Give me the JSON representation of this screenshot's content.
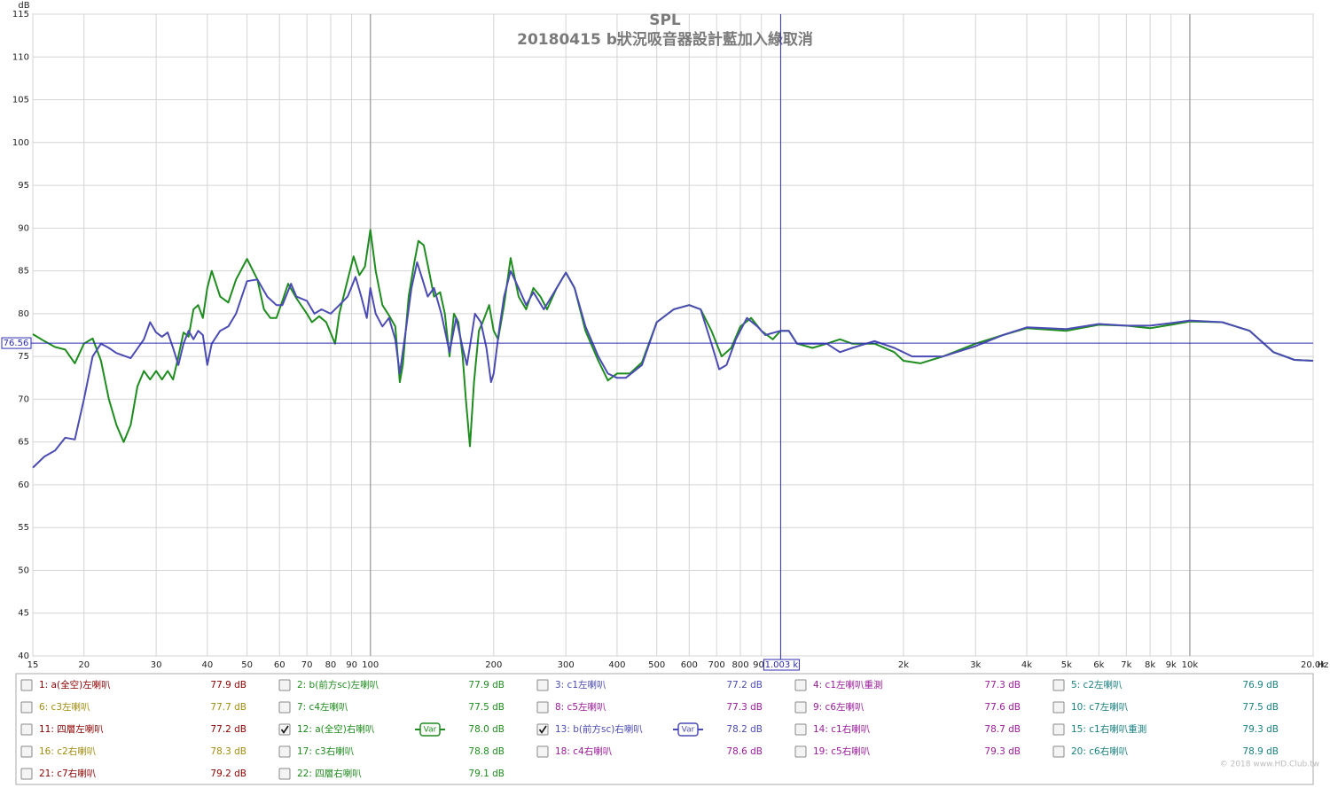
{
  "chart_data": {
    "type": "line",
    "title": "SPL",
    "subtitle": "20180415  b狀況吸音器設計藍加入綠取消",
    "y_label": "dB",
    "x_unit": "Hz",
    "log_x": true,
    "grid": true,
    "xlim": [
      15,
      20000
    ],
    "ylim": [
      40,
      115
    ],
    "yticks": [
      40,
      45,
      50,
      55,
      60,
      65,
      70,
      75,
      80,
      85,
      90,
      95,
      100,
      105,
      110,
      115
    ],
    "xticks": [
      15,
      20,
      30,
      40,
      50,
      60,
      70,
      80,
      90,
      100,
      200,
      300,
      400,
      500,
      600,
      700,
      800,
      900,
      {
        "value": 2000,
        "label": "2k"
      },
      {
        "value": 3000,
        "label": "3k"
      },
      {
        "value": 4000,
        "label": "4k"
      },
      {
        "value": 5000,
        "label": "5k"
      },
      {
        "value": 6000,
        "label": "6k"
      },
      {
        "value": 7000,
        "label": "7k"
      },
      {
        "value": 8000,
        "label": "8k"
      },
      {
        "value": 9000,
        "label": "9k"
      },
      {
        "value": 10000,
        "label": "10k"
      },
      {
        "value": 20000,
        "label": "20.0k"
      }
    ],
    "cursor": {
      "x": 1003,
      "x_label": "1.003 k",
      "y": 76.56
    },
    "watermark": "© 2018 www.HD.Club.tw",
    "series": [
      {
        "name": "1: a(全空)左喇叭",
        "color": "#8b0000",
        "level": 77.9,
        "level_label": "77.9 dB",
        "checked": false
      },
      {
        "name": "2: b(前方sc)左喇叭",
        "color": "#1e8c1e",
        "level": 77.9,
        "level_label": "77.9 dB",
        "checked": false
      },
      {
        "name": "3: c1左喇叭",
        "color": "#4b4bb4",
        "level": 77.2,
        "level_label": "77.2 dB",
        "checked": false
      },
      {
        "name": "4: c1左喇叭重測",
        "color": "#9b1b9b",
        "level": 77.3,
        "level_label": "77.3 dB",
        "checked": false
      },
      {
        "name": "5: c2左喇叭",
        "color": "#1b8080",
        "level": 76.9,
        "level_label": "76.9 dB",
        "checked": false
      },
      {
        "name": "6: c3左喇叭",
        "color": "#a08c10",
        "level": 77.7,
        "level_label": "77.7 dB",
        "checked": false
      },
      {
        "name": "7: c4左喇叭",
        "color": "#1e8c1e",
        "level": 77.5,
        "level_label": "77.5 dB",
        "checked": false
      },
      {
        "name": "8: c5左喇叭",
        "color": "#9b1b9b",
        "level": 77.3,
        "level_label": "77.3 dB",
        "checked": false
      },
      {
        "name": "9: c6左喇叭",
        "color": "#9b1b9b",
        "level": 77.6,
        "level_label": "77.6 dB",
        "checked": false
      },
      {
        "name": "10: c7左喇叭",
        "color": "#1b8080",
        "level": 77.5,
        "level_label": "77.5 dB",
        "checked": false
      },
      {
        "name": "11: 四層左喇叭",
        "color": "#8b0000",
        "level": 77.2,
        "level_label": "77.2 dB",
        "checked": false
      },
      {
        "name": "12: a(全空)右喇叭",
        "color": "#1e8c1e",
        "level": 78.0,
        "level_label": "78.0 dB",
        "checked": true,
        "var_label": "Var",
        "x": [
          15,
          16,
          17,
          18,
          19,
          20,
          21,
          22,
          23,
          24,
          25,
          26,
          27,
          28,
          29,
          30,
          31,
          32,
          33,
          34,
          35,
          36,
          37,
          38,
          39,
          40,
          41,
          43,
          45,
          47,
          50,
          53,
          55,
          57,
          59,
          61,
          63,
          66,
          70,
          72,
          75,
          78,
          82,
          84,
          87,
          91,
          94,
          97,
          100,
          103,
          107,
          111,
          115,
          118,
          120,
          124,
          128,
          131,
          135,
          139,
          143,
          148,
          152,
          156,
          160,
          164,
          168,
          171,
          175,
          179,
          184,
          188,
          195,
          200,
          205,
          212,
          220,
          230,
          240,
          250,
          260,
          270,
          285,
          300,
          315,
          335,
          360,
          380,
          400,
          430,
          460,
          500,
          550,
          600,
          640,
          680,
          720,
          760,
          800,
          850,
          900,
          960,
          1003,
          1050,
          1100,
          1200,
          1300,
          1400,
          1500,
          1700,
          1900,
          2000,
          2200,
          2500,
          3000,
          3500,
          4000,
          5000,
          6000,
          7000,
          8000,
          9000,
          10000,
          12000,
          14000,
          16000,
          18000,
          20000
        ],
        "values": [
          77.6,
          76.8,
          76.1,
          75.8,
          74.2,
          76.5,
          77.1,
          74.5,
          70,
          67,
          65,
          67,
          71.5,
          73.3,
          72.3,
          73.3,
          72.3,
          73.3,
          72.3,
          75,
          77.8,
          77.3,
          80.5,
          81,
          79.5,
          83,
          85,
          82,
          81.3,
          84,
          86.4,
          84,
          80.5,
          79.5,
          79.5,
          81.5,
          83.5,
          81.8,
          80,
          79,
          79.7,
          79,
          76.5,
          80,
          83,
          86.7,
          84.5,
          85.5,
          89.8,
          85,
          81,
          79.8,
          78.5,
          72,
          74,
          82,
          86,
          88.5,
          88,
          85,
          82,
          82.5,
          80,
          75,
          80,
          79,
          75,
          70,
          64.5,
          72,
          78,
          79,
          81,
          78,
          77,
          81,
          86.5,
          82,
          80.5,
          83,
          82,
          80.5,
          83,
          84.8,
          83,
          78,
          74.5,
          72.2,
          73,
          73,
          74.3,
          79,
          80.5,
          81,
          80.5,
          78,
          75,
          76,
          78.5,
          79.5,
          78,
          77,
          78,
          78,
          76.5,
          76,
          76.5,
          77,
          76.5,
          76.5,
          75.5,
          74.5,
          74.2,
          75,
          76.5,
          77.5,
          78.3,
          78,
          78.7,
          78.6,
          78.3,
          78.7,
          79.1,
          79,
          78,
          75.5,
          74.6,
          74.5
        ]
      },
      {
        "name": "13: b(前方sc)右喇叭",
        "color": "#4b4bb4",
        "level": 78.2,
        "level_label": "78.2 dB",
        "checked": true,
        "var_label": "Var",
        "x": [
          15,
          16,
          17,
          18,
          19,
          20,
          21,
          22,
          23,
          24,
          26,
          28,
          29,
          30,
          31,
          32,
          33,
          34,
          35,
          36,
          37,
          38,
          39,
          40,
          41,
          43,
          45,
          47,
          50,
          53,
          56,
          59,
          61,
          64,
          66,
          70,
          73,
          76,
          80,
          84,
          88,
          92,
          95,
          98,
          100,
          103,
          107,
          111,
          115,
          118,
          122,
          126,
          130,
          134,
          138,
          143,
          149,
          156,
          162,
          168,
          172,
          176,
          180,
          186,
          192,
          197,
          200,
          206,
          212,
          220,
          230,
          240,
          250,
          265,
          285,
          300,
          315,
          335,
          360,
          380,
          400,
          420,
          460,
          500,
          550,
          600,
          640,
          680,
          710,
          740,
          780,
          830,
          880,
          920,
          1003,
          1050,
          1100,
          1200,
          1300,
          1400,
          1500,
          1700,
          1900,
          2100,
          2500,
          3000,
          3500,
          4000,
          5000,
          6000,
          7000,
          8000,
          9000,
          10000,
          12000,
          14000,
          16000,
          18000,
          20000
        ],
        "values": [
          62,
          63.3,
          64,
          65.5,
          65.3,
          70,
          75,
          76.5,
          76,
          75.4,
          74.8,
          77,
          79,
          77.8,
          77.3,
          77.8,
          76,
          74,
          76.5,
          78,
          77,
          78,
          77.5,
          74,
          76.5,
          78,
          78.5,
          80,
          83.8,
          84,
          82,
          81,
          81,
          83.5,
          82,
          81.5,
          80,
          80.5,
          80,
          81,
          82,
          84.3,
          82,
          79.5,
          83,
          80,
          78.5,
          79.5,
          77,
          73,
          78,
          83,
          86,
          84,
          82,
          83,
          80,
          75.5,
          79.5,
          76,
          74,
          77,
          80,
          79,
          76,
          72,
          73,
          78,
          82,
          85,
          83,
          81,
          82.5,
          80.5,
          83,
          84.8,
          83,
          78.5,
          75,
          73,
          72.5,
          72.5,
          74,
          79,
          80.5,
          81,
          80.5,
          76.5,
          73.5,
          74,
          77,
          79.5,
          78.5,
          77.5,
          78,
          78,
          76.5,
          76.5,
          76.5,
          75.5,
          76,
          76.8,
          76,
          75,
          75,
          76.2,
          77.5,
          78.4,
          78.2,
          78.8,
          78.6,
          78.6,
          78.9,
          79.2,
          79,
          78,
          75.5,
          74.6,
          74.5
        ]
      },
      {
        "name": "14: c1右喇叭",
        "color": "#9b1b9b",
        "level": 78.7,
        "level_label": "78.7 dB",
        "checked": false
      },
      {
        "name": "15: c1右喇叭重測",
        "color": "#1b8080",
        "level": 79.3,
        "level_label": "79.3 dB",
        "checked": false
      },
      {
        "name": "16: c2右喇叭",
        "color": "#a08c10",
        "level": 78.3,
        "level_label": "78.3 dB",
        "checked": false
      },
      {
        "name": "17: c3右喇叭",
        "color": "#1e8c1e",
        "level": 78.8,
        "level_label": "78.8 dB",
        "checked": false
      },
      {
        "name": "18: c4右喇叭",
        "color": "#9b1b9b",
        "level": 78.6,
        "level_label": "78.6 dB",
        "checked": false
      },
      {
        "name": "19: c5右喇叭",
        "color": "#9b1b9b",
        "level": 79.3,
        "level_label": "79.3 dB",
        "checked": false
      },
      {
        "name": "20: c6右喇叭",
        "color": "#1b8080",
        "level": 78.9,
        "level_label": "78.9 dB",
        "checked": false
      },
      {
        "name": "21: c7右喇叭",
        "color": "#8b0000",
        "level": 79.2,
        "level_label": "79.2 dB",
        "checked": false
      },
      {
        "name": "22: 四層右喇叭",
        "color": "#1e8c1e",
        "level": 79.1,
        "level_label": "79.1 dB",
        "checked": false
      }
    ]
  }
}
